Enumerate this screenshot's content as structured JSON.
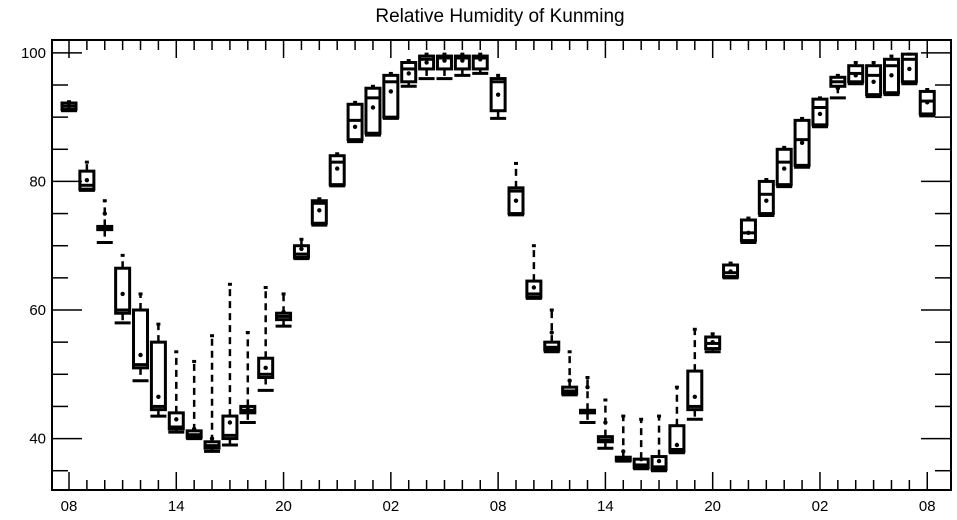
{
  "chart_data": {
    "type": "box",
    "title": "Relative Humidity of Kunming",
    "xlabel": "",
    "ylabel": "",
    "ylim": [
      32,
      102
    ],
    "y_ticks": [
      40,
      60,
      80,
      100
    ],
    "x_tick_labels": [
      "08",
      "14",
      "20",
      "02",
      "08",
      "14",
      "20",
      "02",
      "08"
    ],
    "x_tick_positions": [
      0,
      6,
      12,
      18,
      24,
      30,
      36,
      42,
      48
    ],
    "boxes": [
      {
        "x": 0,
        "q1": 91.2,
        "q3": 92.2,
        "median": 91.7,
        "whisker_low": 91.0,
        "whisker_high": 92.4,
        "mean": 91.7
      },
      {
        "x": 1,
        "q1": 78.8,
        "q3": 81.6,
        "median": 79.4,
        "whisker_low": 78.6,
        "whisker_high": 83.0,
        "mean": 80.2
      },
      {
        "x": 2,
        "q1": 72.5,
        "q3": 73.0,
        "median": 72.7,
        "whisker_low": 70.5,
        "whisker_high": 77.0,
        "mean": 75.0
      },
      {
        "x": 3,
        "q1": 59.5,
        "q3": 66.5,
        "median": 60.0,
        "whisker_low": 58.0,
        "whisker_high": 68.5,
        "mean": 62.5
      },
      {
        "x": 4,
        "q1": 51.0,
        "q3": 60.0,
        "median": 51.5,
        "whisker_low": 49.0,
        "whisker_high": 62.5,
        "mean": 53.0
      },
      {
        "x": 5,
        "q1": 44.5,
        "q3": 55.0,
        "median": 45.0,
        "whisker_low": 43.5,
        "whisker_high": 57.8,
        "mean": 46.5
      },
      {
        "x": 6,
        "q1": 41.5,
        "q3": 44.0,
        "median": 41.8,
        "whisker_low": 41.0,
        "whisker_high": 53.5,
        "mean": 43.0
      },
      {
        "x": 7,
        "q1": 40.2,
        "q3": 41.2,
        "median": 40.6,
        "whisker_low": 40.0,
        "whisker_high": 52.0,
        "mean": 41.5
      },
      {
        "x": 8,
        "q1": 38.5,
        "q3": 39.5,
        "median": 38.9,
        "whisker_low": 38.0,
        "whisker_high": 56.0,
        "mean": 40.0
      },
      {
        "x": 9,
        "q1": 40.0,
        "q3": 43.5,
        "median": 40.5,
        "whisker_low": 39.0,
        "whisker_high": 64.0,
        "mean": 42.5
      },
      {
        "x": 10,
        "q1": 44.0,
        "q3": 45.0,
        "median": 44.4,
        "whisker_low": 42.5,
        "whisker_high": 56.5,
        "mean": 44.5
      },
      {
        "x": 11,
        "q1": 49.5,
        "q3": 52.5,
        "median": 50.0,
        "whisker_low": 47.5,
        "whisker_high": 63.5,
        "mean": 51.0
      },
      {
        "x": 12,
        "q1": 58.5,
        "q3": 59.5,
        "median": 59.0,
        "whisker_low": 57.5,
        "whisker_high": 62.5,
        "mean": 59.7
      },
      {
        "x": 13,
        "q1": 68.2,
        "q3": 70.0,
        "median": 68.7,
        "whisker_low": 68.0,
        "whisker_high": 71.0,
        "mean": 69.5
      },
      {
        "x": 14,
        "q1": 73.5,
        "q3": 77.0,
        "median": 76.6,
        "whisker_low": 73.2,
        "whisker_high": 77.3,
        "mean": 75.5
      },
      {
        "x": 15,
        "q1": 79.5,
        "q3": 84.0,
        "median": 83.0,
        "whisker_low": 79.3,
        "whisker_high": 84.3,
        "mean": 82.0
      },
      {
        "x": 16,
        "q1": 86.5,
        "q3": 92.0,
        "median": 89.5,
        "whisker_low": 86.2,
        "whisker_high": 92.3,
        "mean": 88.5
      },
      {
        "x": 17,
        "q1": 87.5,
        "q3": 94.5,
        "median": 93.0,
        "whisker_low": 87.2,
        "whisker_high": 94.8,
        "mean": 91.5
      },
      {
        "x": 18,
        "q1": 90.0,
        "q3": 96.5,
        "median": 95.5,
        "whisker_low": 89.8,
        "whisker_high": 96.8,
        "mean": 94.0
      },
      {
        "x": 19,
        "q1": 95.5,
        "q3": 98.5,
        "median": 97.5,
        "whisker_low": 94.8,
        "whisker_high": 98.8,
        "mean": 96.8
      },
      {
        "x": 20,
        "q1": 97.5,
        "q3": 99.5,
        "median": 99.0,
        "whisker_low": 96.0,
        "whisker_high": 99.8,
        "mean": 98.5
      },
      {
        "x": 21,
        "q1": 97.5,
        "q3": 99.5,
        "median": 99.2,
        "whisker_low": 96.0,
        "whisker_high": 99.8,
        "mean": 98.8
      },
      {
        "x": 22,
        "q1": 97.5,
        "q3": 99.5,
        "median": 99.2,
        "whisker_low": 96.5,
        "whisker_high": 99.8,
        "mean": 98.8
      },
      {
        "x": 23,
        "q1": 97.5,
        "q3": 99.5,
        "median": 99.2,
        "whisker_low": 96.8,
        "whisker_high": 99.8,
        "mean": 99.0
      },
      {
        "x": 24,
        "q1": 91.0,
        "q3": 96.0,
        "median": 95.5,
        "whisker_low": 89.8,
        "whisker_high": 96.5,
        "mean": 93.5
      },
      {
        "x": 25,
        "q1": 75.0,
        "q3": 79.0,
        "median": 78.5,
        "whisker_low": 74.8,
        "whisker_high": 82.8,
        "mean": 77.0
      },
      {
        "x": 26,
        "q1": 62.0,
        "q3": 64.5,
        "median": 62.5,
        "whisker_low": 61.8,
        "whisker_high": 70.0,
        "mean": 63.5
      },
      {
        "x": 27,
        "q1": 53.8,
        "q3": 55.0,
        "median": 54.2,
        "whisker_low": 53.5,
        "whisker_high": 60.0,
        "mean": 56.5
      },
      {
        "x": 28,
        "q1": 47.0,
        "q3": 48.0,
        "median": 47.4,
        "whisker_low": 46.8,
        "whisker_high": 53.5,
        "mean": 49.0
      },
      {
        "x": 29,
        "q1": 44.0,
        "q3": 44.4,
        "median": 44.2,
        "whisker_low": 42.5,
        "whisker_high": 49.5,
        "mean": 48.0
      },
      {
        "x": 30,
        "q1": 39.5,
        "q3": 40.3,
        "median": 39.8,
        "whisker_low": 38.5,
        "whisker_high": 46.0,
        "mean": 42.5
      },
      {
        "x": 31,
        "q1": 36.6,
        "q3": 37.1,
        "median": 36.8,
        "whisker_low": 36.5,
        "whisker_high": 43.5,
        "mean": 38.0
      },
      {
        "x": 32,
        "q1": 35.5,
        "q3": 36.8,
        "median": 35.9,
        "whisker_low": 35.3,
        "whisker_high": 43.0,
        "mean": 36.8
      },
      {
        "x": 33,
        "q1": 35.2,
        "q3": 37.2,
        "median": 35.6,
        "whisker_low": 35.0,
        "whisker_high": 43.5,
        "mean": 36.5
      },
      {
        "x": 34,
        "q1": 38.0,
        "q3": 42.0,
        "median": 38.3,
        "whisker_low": 37.8,
        "whisker_high": 48.0,
        "mean": 39.0
      },
      {
        "x": 35,
        "q1": 44.5,
        "q3": 50.5,
        "median": 45.0,
        "whisker_low": 43.0,
        "whisker_high": 57.0,
        "mean": 46.5
      },
      {
        "x": 36,
        "q1": 54.0,
        "q3": 55.8,
        "median": 54.8,
        "whisker_low": 53.5,
        "whisker_high": 56.3,
        "mean": 55.0
      },
      {
        "x": 37,
        "q1": 65.2,
        "q3": 67.0,
        "median": 65.8,
        "whisker_low": 65.0,
        "whisker_high": 67.3,
        "mean": 66.0
      },
      {
        "x": 38,
        "q1": 70.8,
        "q3": 74.0,
        "median": 72.0,
        "whisker_low": 70.5,
        "whisker_high": 74.3,
        "mean": 72.0
      },
      {
        "x": 39,
        "q1": 75.0,
        "q3": 80.0,
        "median": 78.0,
        "whisker_low": 74.7,
        "whisker_high": 80.3,
        "mean": 77.0
      },
      {
        "x": 40,
        "q1": 79.5,
        "q3": 85.0,
        "median": 83.0,
        "whisker_low": 79.2,
        "whisker_high": 85.3,
        "mean": 82.0
      },
      {
        "x": 41,
        "q1": 82.5,
        "q3": 89.5,
        "median": 86.5,
        "whisker_low": 82.2,
        "whisker_high": 89.8,
        "mean": 86.0
      },
      {
        "x": 42,
        "q1": 88.8,
        "q3": 92.8,
        "median": 91.5,
        "whisker_low": 88.5,
        "whisker_high": 93.0,
        "mean": 90.5
      },
      {
        "x": 43,
        "q1": 94.8,
        "q3": 96.2,
        "median": 95.5,
        "whisker_low": 93.0,
        "whisker_high": 96.5,
        "mean": 94.5
      },
      {
        "x": 44,
        "q1": 95.5,
        "q3": 98.0,
        "median": 96.8,
        "whisker_low": 95.2,
        "whisker_high": 98.5,
        "mean": 96.5
      },
      {
        "x": 45,
        "q1": 93.5,
        "q3": 98.0,
        "median": 96.5,
        "whisker_low": 93.2,
        "whisker_high": 98.5,
        "mean": 95.5
      },
      {
        "x": 46,
        "q1": 93.8,
        "q3": 99.0,
        "median": 98.0,
        "whisker_low": 93.5,
        "whisker_high": 99.5,
        "mean": 96.5
      },
      {
        "x": 47,
        "q1": 95.5,
        "q3": 99.8,
        "median": 99.0,
        "whisker_low": 95.2,
        "whisker_high": 99.8,
        "mean": 97.5
      },
      {
        "x": 48,
        "q1": 90.5,
        "q3": 94.0,
        "median": 92.5,
        "whisker_low": 90.2,
        "whisker_high": 94.3,
        "mean": 92.3
      }
    ],
    "grid": false,
    "legend": "none"
  }
}
